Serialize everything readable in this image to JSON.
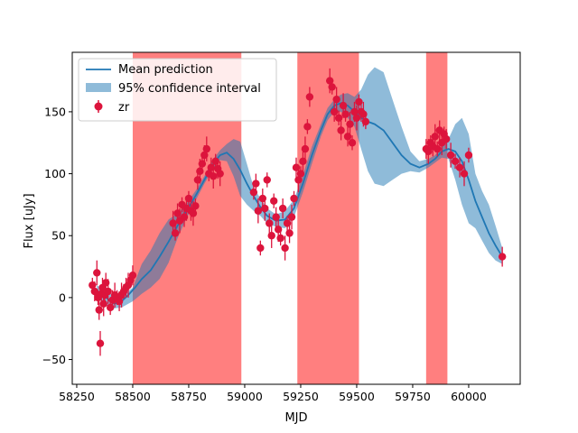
{
  "chart_data": {
    "type": "line",
    "title": "",
    "xlabel": "MJD",
    "ylabel": "Flux [uJy]",
    "xlim": [
      58230,
      60230
    ],
    "ylim": [
      -70,
      198
    ],
    "xticks": [
      58250,
      58500,
      58750,
      59000,
      59250,
      59500,
      59750,
      60000
    ],
    "yticks": [
      -50,
      0,
      50,
      100,
      150
    ],
    "grid": false,
    "legend": {
      "placement": "top-left",
      "entries": [
        "Mean prediction",
        "95% confidence interval",
        "zr"
      ]
    },
    "colors": {
      "mean": "#1f77b4",
      "confidence": "#1f77b4",
      "points": "#dc143c",
      "shade": "#ff0000"
    },
    "shaded_regions": [
      [
        58500,
        58985
      ],
      [
        59235,
        59510
      ],
      [
        59810,
        59905
      ]
    ],
    "series": [
      {
        "name": "Mean prediction",
        "x": [
          58340,
          58370,
          58400,
          58420,
          58450,
          58480,
          58510,
          58540,
          58580,
          58620,
          58660,
          58700,
          58740,
          58780,
          58820,
          58860,
          58890,
          58920,
          58950,
          58980,
          59010,
          59040,
          59070,
          59100,
          59140,
          59180,
          59220,
          59260,
          59300,
          59340,
          59370,
          59400,
          59430,
          59460,
          59490,
          59520,
          59550,
          59580,
          59620,
          59660,
          59700,
          59740,
          59780,
          59820,
          59850,
          59880,
          59910,
          59940,
          59970,
          60000,
          60030,
          60060,
          60090,
          60120,
          60150
        ],
        "y": [
          5,
          2,
          -3,
          -5,
          -3,
          2,
          8,
          15,
          22,
          33,
          45,
          58,
          70,
          82,
          95,
          108,
          115,
          117,
          112,
          103,
          92,
          82,
          73,
          66,
          62,
          63,
          72,
          92,
          115,
          135,
          148,
          155,
          157,
          155,
          150,
          145,
          142,
          140,
          135,
          125,
          115,
          108,
          105,
          108,
          112,
          118,
          120,
          118,
          110,
          95,
          78,
          65,
          52,
          42,
          33
        ]
      },
      {
        "name": "95% confidence interval",
        "x": [
          58340,
          58400,
          58450,
          58500,
          58540,
          58580,
          58620,
          58660,
          58700,
          58740,
          58780,
          58820,
          58860,
          58890,
          58920,
          58950,
          58980,
          59010,
          59040,
          59070,
          59100,
          59140,
          59180,
          59220,
          59260,
          59300,
          59340,
          59370,
          59400,
          59430,
          59460,
          59490,
          59520,
          59550,
          59580,
          59620,
          59660,
          59700,
          59740,
          59780,
          59820,
          59850,
          59880,
          59910,
          59940,
          59970,
          60000,
          60030,
          60060,
          60090,
          60120,
          60150
        ],
        "lower": [
          0,
          -9,
          -8,
          -3,
          3,
          8,
          15,
          28,
          48,
          64,
          78,
          92,
          104,
          111,
          110,
          98,
          82,
          75,
          70,
          66,
          60,
          57,
          56,
          65,
          85,
          108,
          130,
          143,
          150,
          150,
          145,
          138,
          120,
          102,
          92,
          90,
          95,
          100,
          102,
          101,
          105,
          109,
          113,
          112,
          95,
          75,
          60,
          56,
          46,
          36,
          30,
          27
        ],
        "upper": [
          10,
          3,
          1,
          8,
          27,
          38,
          52,
          63,
          68,
          76,
          86,
          98,
          112,
          119,
          124,
          128,
          126,
          108,
          89,
          80,
          72,
          67,
          70,
          79,
          99,
          122,
          140,
          153,
          160,
          164,
          165,
          162,
          168,
          180,
          186,
          182,
          160,
          138,
          118,
          110,
          112,
          115,
          122,
          128,
          140,
          145,
          132,
          100,
          86,
          75,
          58,
          40
        ]
      },
      {
        "name": "zr",
        "x": [
          58320,
          58330,
          58340,
          58345,
          58350,
          58355,
          58360,
          58365,
          58370,
          58375,
          58380,
          58390,
          58400,
          58410,
          58420,
          58430,
          58440,
          58450,
          58460,
          58470,
          58480,
          58490,
          58500,
          58680,
          58690,
          58700,
          58710,
          58720,
          58730,
          58740,
          58750,
          58760,
          58770,
          58780,
          58790,
          58800,
          58810,
          58820,
          58830,
          58840,
          58850,
          58860,
          58870,
          58880,
          58890,
          59040,
          59050,
          59060,
          59070,
          59080,
          59090,
          59100,
          59110,
          59120,
          59130,
          59140,
          59150,
          59160,
          59170,
          59180,
          59190,
          59200,
          59210,
          59220,
          59230,
          59240,
          59250,
          59260,
          59270,
          59280,
          59290,
          59380,
          59390,
          59400,
          59410,
          59420,
          59430,
          59440,
          59450,
          59460,
          59470,
          59480,
          59490,
          59500,
          59510,
          59520,
          59530,
          59540,
          59810,
          59820,
          59830,
          59840,
          59850,
          59860,
          59870,
          59880,
          59890,
          59900,
          59920,
          59940,
          59960,
          59980,
          60000,
          60150
        ],
        "y": [
          10,
          5,
          20,
          0,
          -10,
          -37,
          3,
          8,
          -5,
          2,
          12,
          5,
          -8,
          -2,
          2,
          0,
          -3,
          2,
          5,
          8,
          10,
          14,
          18,
          60,
          52,
          68,
          62,
          75,
          65,
          72,
          80,
          70,
          68,
          74,
          95,
          102,
          108,
          115,
          120,
          100,
          105,
          98,
          110,
          104,
          100,
          85,
          92,
          70,
          40,
          80,
          72,
          95,
          60,
          50,
          78,
          65,
          55,
          48,
          72,
          40,
          60,
          52,
          65,
          80,
          105,
          95,
          100,
          110,
          120,
          138,
          162,
          175,
          170,
          150,
          160,
          145,
          135,
          155,
          148,
          130,
          140,
          125,
          150,
          145,
          158,
          150,
          148,
          142,
          120,
          118,
          125,
          122,
          130,
          120,
          135,
          125,
          132,
          128,
          115,
          110,
          105,
          100,
          115,
          33
        ]
      }
    ]
  }
}
